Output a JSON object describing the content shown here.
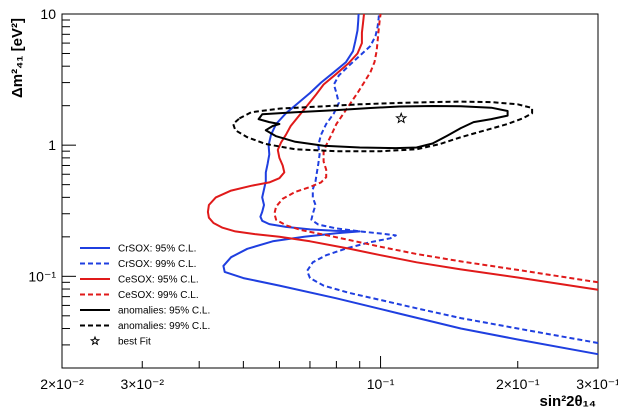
{
  "chart_data": {
    "type": "line",
    "xlabel": "sin²2θ₁₄",
    "ylabel": "Δm²₄₁ [eV²]",
    "x_scale": "log",
    "y_scale": "log",
    "xlim": [
      0.02,
      0.3
    ],
    "ylim": [
      0.02,
      10
    ],
    "x_ticks": [
      {
        "value": 0.02,
        "label": "2×10⁻²"
      },
      {
        "value": 0.03,
        "label": "3×10⁻²"
      },
      {
        "value": 0.1,
        "label": "10⁻¹"
      },
      {
        "value": 0.2,
        "label": "2×10⁻¹"
      },
      {
        "value": 0.3,
        "label": "3×10⁻¹"
      }
    ],
    "y_ticks": [
      {
        "value": 0.1,
        "label": "10⁻¹"
      },
      {
        "value": 1,
        "label": "1"
      },
      {
        "value": 10,
        "label": "10"
      }
    ],
    "legend_position": "bottom-left",
    "series": [
      {
        "name": "CrSOX: 95% C.L.",
        "color": "#1f3fe0",
        "dash": "solid",
        "points": [
          [
            0.3,
            0.0255
          ],
          [
            0.2,
            0.033
          ],
          [
            0.15,
            0.04
          ],
          [
            0.11,
            0.052
          ],
          [
            0.08,
            0.068
          ],
          [
            0.06,
            0.085
          ],
          [
            0.05,
            0.097
          ],
          [
            0.0455,
            0.108
          ],
          [
            0.0452,
            0.12
          ],
          [
            0.047,
            0.14
          ],
          [
            0.051,
            0.162
          ],
          [
            0.058,
            0.185
          ],
          [
            0.068,
            0.2
          ],
          [
            0.08,
            0.213
          ],
          [
            0.09,
            0.22
          ],
          [
            0.08,
            0.222
          ],
          [
            0.07,
            0.228
          ],
          [
            0.062,
            0.238
          ],
          [
            0.057,
            0.25
          ],
          [
            0.055,
            0.265
          ],
          [
            0.0545,
            0.285
          ],
          [
            0.055,
            0.31
          ],
          [
            0.0555,
            0.35
          ],
          [
            0.055,
            0.4
          ],
          [
            0.0555,
            0.46
          ],
          [
            0.056,
            0.53
          ],
          [
            0.056,
            0.62
          ],
          [
            0.0565,
            0.72
          ],
          [
            0.057,
            0.85
          ],
          [
            0.0568,
            1.0
          ],
          [
            0.0575,
            1.2
          ],
          [
            0.059,
            1.45
          ],
          [
            0.062,
            1.75
          ],
          [
            0.066,
            2.1
          ],
          [
            0.07,
            2.5
          ],
          [
            0.074,
            3.0
          ],
          [
            0.079,
            3.6
          ],
          [
            0.084,
            4.3
          ],
          [
            0.087,
            5.2
          ],
          [
            0.088,
            6.2
          ],
          [
            0.089,
            7.5
          ],
          [
            0.0893,
            8.8
          ],
          [
            0.0895,
            10
          ]
        ]
      },
      {
        "name": "CrSOX: 99% C.L.",
        "color": "#1f3fe0",
        "dash": "dashed",
        "points": [
          [
            0.3,
            0.031
          ],
          [
            0.2,
            0.04
          ],
          [
            0.15,
            0.048
          ],
          [
            0.12,
            0.057
          ],
          [
            0.1,
            0.066
          ],
          [
            0.085,
            0.075
          ],
          [
            0.075,
            0.085
          ],
          [
            0.07,
            0.097
          ],
          [
            0.069,
            0.11
          ],
          [
            0.071,
            0.128
          ],
          [
            0.076,
            0.145
          ],
          [
            0.085,
            0.165
          ],
          [
            0.095,
            0.182
          ],
          [
            0.105,
            0.195
          ],
          [
            0.108,
            0.205
          ],
          [
            0.1,
            0.212
          ],
          [
            0.09,
            0.22
          ],
          [
            0.08,
            0.232
          ],
          [
            0.073,
            0.248
          ],
          [
            0.0705,
            0.27
          ],
          [
            0.071,
            0.3
          ],
          [
            0.072,
            0.35
          ],
          [
            0.071,
            0.4
          ],
          [
            0.071,
            0.46
          ],
          [
            0.072,
            0.53
          ],
          [
            0.0725,
            0.62
          ],
          [
            0.073,
            0.72
          ],
          [
            0.0735,
            0.85
          ],
          [
            0.073,
            1.0
          ],
          [
            0.074,
            1.2
          ],
          [
            0.076,
            1.45
          ],
          [
            0.079,
            1.75
          ],
          [
            0.081,
            2.1
          ],
          [
            0.08,
            2.5
          ],
          [
            0.079,
            2.9
          ],
          [
            0.081,
            3.4
          ],
          [
            0.085,
            4.0
          ],
          [
            0.09,
            4.8
          ],
          [
            0.095,
            5.7
          ],
          [
            0.0975,
            6.8
          ],
          [
            0.0985,
            8.0
          ],
          [
            0.099,
            9.2
          ],
          [
            0.0992,
            10
          ]
        ]
      },
      {
        "name": "CeSOX: 95% C.L.",
        "color": "#e01a1a",
        "dash": "solid",
        "points": [
          [
            0.3,
            0.079
          ],
          [
            0.2,
            0.098
          ],
          [
            0.15,
            0.113
          ],
          [
            0.12,
            0.128
          ],
          [
            0.1,
            0.145
          ],
          [
            0.085,
            0.163
          ],
          [
            0.07,
            0.185
          ],
          [
            0.06,
            0.2
          ],
          [
            0.053,
            0.21
          ],
          [
            0.048,
            0.22
          ],
          [
            0.045,
            0.235
          ],
          [
            0.043,
            0.255
          ],
          [
            0.042,
            0.28
          ],
          [
            0.0418,
            0.31
          ],
          [
            0.042,
            0.35
          ],
          [
            0.0435,
            0.4
          ],
          [
            0.047,
            0.45
          ],
          [
            0.052,
            0.49
          ],
          [
            0.057,
            0.52
          ],
          [
            0.06,
            0.56
          ],
          [
            0.0615,
            0.62
          ],
          [
            0.061,
            0.7
          ],
          [
            0.06,
            0.8
          ],
          [
            0.0595,
            0.92
          ],
          [
            0.0605,
            1.05
          ],
          [
            0.062,
            1.2
          ],
          [
            0.0635,
            1.4
          ],
          [
            0.066,
            1.65
          ],
          [
            0.069,
            2.0
          ],
          [
            0.072,
            2.4
          ],
          [
            0.075,
            2.9
          ],
          [
            0.08,
            3.5
          ],
          [
            0.085,
            4.2
          ],
          [
            0.089,
            5.0
          ],
          [
            0.091,
            6.0
          ],
          [
            0.091,
            7.2
          ],
          [
            0.0915,
            8.5
          ],
          [
            0.092,
            10
          ]
        ]
      },
      {
        "name": "CeSOX: 99% C.L.",
        "color": "#e01a1a",
        "dash": "dashed",
        "points": [
          [
            0.3,
            0.09
          ],
          [
            0.2,
            0.112
          ],
          [
            0.15,
            0.13
          ],
          [
            0.12,
            0.148
          ],
          [
            0.1,
            0.168
          ],
          [
            0.085,
            0.19
          ],
          [
            0.075,
            0.208
          ],
          [
            0.067,
            0.225
          ],
          [
            0.062,
            0.245
          ],
          [
            0.059,
            0.27
          ],
          [
            0.0585,
            0.3
          ],
          [
            0.059,
            0.34
          ],
          [
            0.061,
            0.39
          ],
          [
            0.065,
            0.44
          ],
          [
            0.07,
            0.48
          ],
          [
            0.074,
            0.52
          ],
          [
            0.076,
            0.57
          ],
          [
            0.076,
            0.65
          ],
          [
            0.075,
            0.75
          ],
          [
            0.075,
            0.88
          ],
          [
            0.076,
            1.0
          ],
          [
            0.078,
            1.2
          ],
          [
            0.08,
            1.45
          ],
          [
            0.083,
            1.75
          ],
          [
            0.086,
            2.1
          ],
          [
            0.089,
            2.5
          ],
          [
            0.092,
            3.0
          ],
          [
            0.095,
            3.6
          ],
          [
            0.097,
            4.3
          ],
          [
            0.098,
            5.2
          ],
          [
            0.0985,
            6.2
          ],
          [
            0.099,
            7.5
          ],
          [
            0.0995,
            8.8
          ],
          [
            0.1,
            10
          ]
        ]
      },
      {
        "name": "anomalies: 95% C.L.",
        "color": "#000000",
        "dash": "solid",
        "closed": true,
        "points": [
          [
            0.054,
            1.58
          ],
          [
            0.055,
            1.72
          ],
          [
            0.065,
            1.78
          ],
          [
            0.08,
            1.85
          ],
          [
            0.095,
            1.92
          ],
          [
            0.11,
            1.97
          ],
          [
            0.13,
            1.99
          ],
          [
            0.15,
            1.98
          ],
          [
            0.175,
            1.93
          ],
          [
            0.19,
            1.82
          ],
          [
            0.19,
            1.68
          ],
          [
            0.175,
            1.58
          ],
          [
            0.16,
            1.5
          ],
          [
            0.15,
            1.35
          ],
          [
            0.14,
            1.18
          ],
          [
            0.13,
            1.03
          ],
          [
            0.12,
            0.96
          ],
          [
            0.108,
            0.95
          ],
          [
            0.09,
            0.96
          ],
          [
            0.075,
            0.99
          ],
          [
            0.065,
            1.06
          ],
          [
            0.059,
            1.17
          ],
          [
            0.056,
            1.3
          ],
          [
            0.058,
            1.4
          ],
          [
            0.06,
            1.45
          ],
          [
            0.057,
            1.5
          ]
        ]
      },
      {
        "name": "anomalies: 99% C.L.",
        "color": "#000000",
        "dash": "dashed",
        "closed": true,
        "points": [
          [
            0.049,
            1.6
          ],
          [
            0.052,
            1.78
          ],
          [
            0.06,
            1.9
          ],
          [
            0.075,
            1.98
          ],
          [
            0.09,
            2.05
          ],
          [
            0.11,
            2.1
          ],
          [
            0.13,
            2.13
          ],
          [
            0.15,
            2.15
          ],
          [
            0.175,
            2.13
          ],
          [
            0.2,
            2.05
          ],
          [
            0.215,
            1.92
          ],
          [
            0.215,
            1.75
          ],
          [
            0.205,
            1.6
          ],
          [
            0.19,
            1.45
          ],
          [
            0.17,
            1.3
          ],
          [
            0.15,
            1.15
          ],
          [
            0.135,
            1.02
          ],
          [
            0.12,
            0.93
          ],
          [
            0.1,
            0.9
          ],
          [
            0.08,
            0.9
          ],
          [
            0.065,
            0.93
          ],
          [
            0.056,
            1.02
          ],
          [
            0.051,
            1.15
          ],
          [
            0.048,
            1.3
          ],
          [
            0.0475,
            1.45
          ]
        ]
      }
    ],
    "markers": [
      {
        "name": "best Fit",
        "symbol": "star",
        "x": 0.111,
        "y": 1.6,
        "color": "#000000"
      }
    ]
  }
}
